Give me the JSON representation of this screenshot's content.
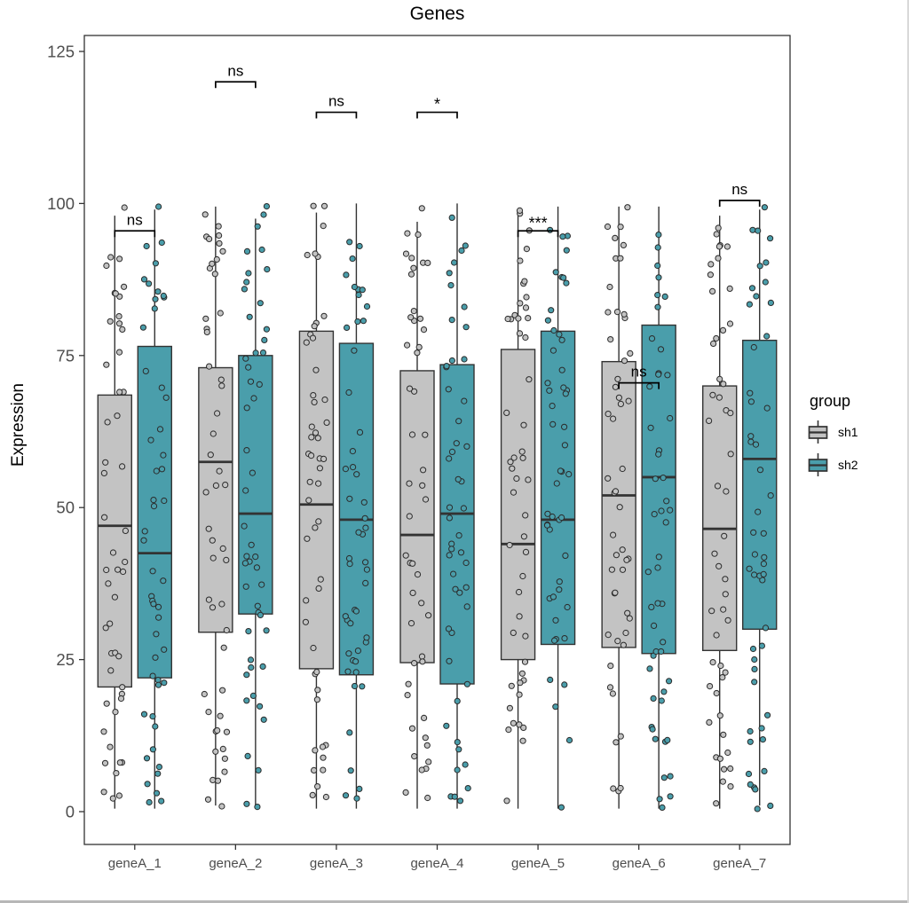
{
  "chart_data": {
    "type": "boxplot",
    "title": "Genes",
    "xlabel": "",
    "ylabel": "Expression",
    "categories": [
      "geneA_1",
      "geneA_2",
      "geneA_3",
      "geneA_4",
      "geneA_5",
      "geneA_6",
      "geneA_7"
    ],
    "yticks": [
      0,
      25,
      50,
      75,
      100,
      125
    ],
    "ylim": [
      0,
      125
    ],
    "grid": false,
    "legend_position": "right",
    "groups": [
      {
        "name": "sh1",
        "color": "#C3C3C3"
      },
      {
        "name": "sh2",
        "color": "#4A9EAB"
      }
    ],
    "overlay": "jittered points, ~50 per box, spanning 0-100",
    "series": [
      {
        "gene": "geneA_1",
        "significance": "ns",
        "sig_y": 95.5,
        "sh1": {
          "whisker_low": 0.5,
          "q1": 20.5,
          "median": 47,
          "q3": 68.5,
          "whisker_high": 98
        },
        "sh2": {
          "whisker_low": 0.5,
          "q1": 22,
          "median": 42.5,
          "q3": 76.5,
          "whisker_high": 99
        }
      },
      {
        "gene": "geneA_2",
        "significance": "ns",
        "sig_y": 120,
        "sh1": {
          "whisker_low": 1,
          "q1": 29.5,
          "median": 57.5,
          "q3": 73,
          "whisker_high": 99.5
        },
        "sh2": {
          "whisker_low": 0.5,
          "q1": 32.5,
          "median": 49,
          "q3": 75,
          "whisker_high": 97.5
        }
      },
      {
        "gene": "geneA_3",
        "significance": "ns",
        "sig_y": 115,
        "sh1": {
          "whisker_low": 0.5,
          "q1": 23.5,
          "median": 50.5,
          "q3": 79,
          "whisker_high": 98.5
        },
        "sh2": {
          "whisker_low": 0.5,
          "q1": 22.5,
          "median": 48,
          "q3": 77,
          "whisker_high": 100
        }
      },
      {
        "gene": "geneA_4",
        "significance": "*",
        "sig_y": 115,
        "sh1": {
          "whisker_low": 0.5,
          "q1": 24.5,
          "median": 45.5,
          "q3": 72.5,
          "whisker_high": 97
        },
        "sh2": {
          "whisker_low": 0.5,
          "q1": 21,
          "median": 49,
          "q3": 73.5,
          "whisker_high": 100
        }
      },
      {
        "gene": "geneA_5",
        "significance": "***",
        "sig_y": 95.5,
        "sh1": {
          "whisker_low": 0.5,
          "q1": 25,
          "median": 44,
          "q3": 76,
          "whisker_high": 98.5
        },
        "sh2": {
          "whisker_low": 0.5,
          "q1": 27.5,
          "median": 48,
          "q3": 79,
          "whisker_high": 99.5
        }
      },
      {
        "gene": "geneA_6",
        "significance": "ns",
        "sig_y": 70.5,
        "sh1": {
          "whisker_low": 0.5,
          "q1": 27,
          "median": 52,
          "q3": 74,
          "whisker_high": 99.5
        },
        "sh2": {
          "whisker_low": 0.5,
          "q1": 26,
          "median": 55,
          "q3": 80,
          "whisker_high": 99.5
        }
      },
      {
        "gene": "geneA_7",
        "significance": "ns",
        "sig_y": 100.5,
        "sh1": {
          "whisker_low": 0.5,
          "q1": 26.5,
          "median": 46.5,
          "q3": 70,
          "whisker_high": 98
        },
        "sh2": {
          "whisker_low": 1,
          "q1": 30,
          "median": 58,
          "q3": 77.5,
          "whisker_high": 99
        }
      }
    ]
  },
  "legend": {
    "title": "group",
    "items": [
      {
        "label": "sh1",
        "color": "#C3C3C3"
      },
      {
        "label": "sh2",
        "color": "#4A9EAB"
      }
    ]
  },
  "style_colors": {
    "box_border": "#333333",
    "median_line": "#333333",
    "axis_text": "#4d4d4d",
    "bracket": "#000000"
  }
}
